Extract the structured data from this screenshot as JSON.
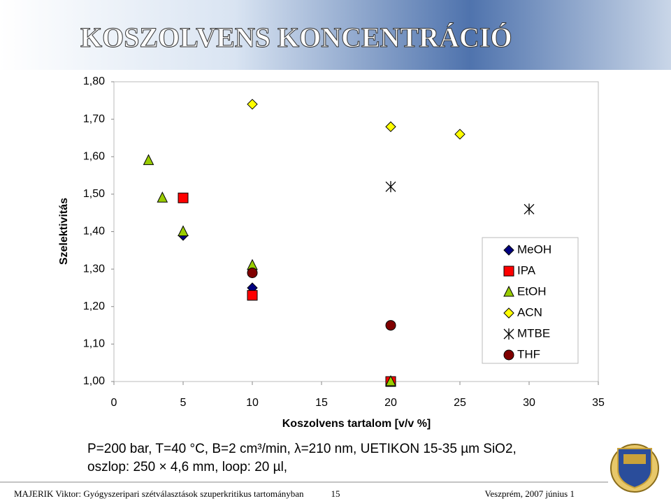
{
  "chart_data": {
    "type": "scatter",
    "title": "KOSZOLVENS KONCENTRÁCIÓ",
    "x_label": "Koszolvens tartalom [v/v %]",
    "y_label": "Szelektivitás",
    "xlim": [
      0,
      35
    ],
    "xticks": [
      0,
      5,
      10,
      15,
      20,
      25,
      30,
      35
    ],
    "ylim": [
      1.0,
      1.8
    ],
    "yticks": [
      {
        "value": 1.0,
        "label": "1,00"
      },
      {
        "value": 1.1,
        "label": "1,10"
      },
      {
        "value": 1.2,
        "label": "1,20"
      },
      {
        "value": 1.3,
        "label": "1,30"
      },
      {
        "value": 1.4,
        "label": "1,40"
      },
      {
        "value": 1.5,
        "label": "1,50"
      },
      {
        "value": 1.6,
        "label": "1,60"
      },
      {
        "value": 1.7,
        "label": "1,70"
      },
      {
        "value": 1.8,
        "label": "1,80"
      }
    ],
    "grid": false,
    "legend": "right",
    "series": [
      {
        "name": "MeOH",
        "color": "#000080",
        "marker": "diamond",
        "x": [
          5,
          10,
          20
        ],
        "values": [
          1.39,
          1.25,
          1.0
        ]
      },
      {
        "name": "IPA",
        "color": "#ff0000",
        "marker": "square",
        "x": [
          5,
          10,
          20
        ],
        "values": [
          1.49,
          1.23,
          1.0
        ]
      },
      {
        "name": "EtOH",
        "color": "#99cc00",
        "marker": "triangle",
        "x": [
          2.5,
          3.5,
          5,
          10,
          20
        ],
        "values": [
          1.59,
          1.49,
          1.4,
          1.31,
          1.0
        ]
      },
      {
        "name": "ACN",
        "color": "#ffff00",
        "marker": "diamond",
        "x": [
          10,
          20,
          25
        ],
        "values": [
          1.74,
          1.68,
          1.66
        ]
      },
      {
        "name": "MTBE",
        "color": "#000000",
        "marker": "star",
        "x": [
          20,
          30
        ],
        "values": [
          1.52,
          1.46
        ]
      },
      {
        "name": "THF",
        "color": "#800000",
        "marker": "circle",
        "x": [
          10,
          20
        ],
        "values": [
          1.29,
          1.15
        ]
      }
    ]
  },
  "notes": [
    "P=200 bar, T=40 °C, B=2 cm³/min, λ=210 nm, UETIKON 15-35 µm SiO2,",
    "oszlop: 250 × 4,6 mm, loop: 20 µl,"
  ],
  "footer": {
    "author": "MAJERIK Viktor: Gyógyszeripari szétválasztások szuperkritikus tartományban",
    "page": "15",
    "date": "Veszprém, 2007 június 1"
  }
}
